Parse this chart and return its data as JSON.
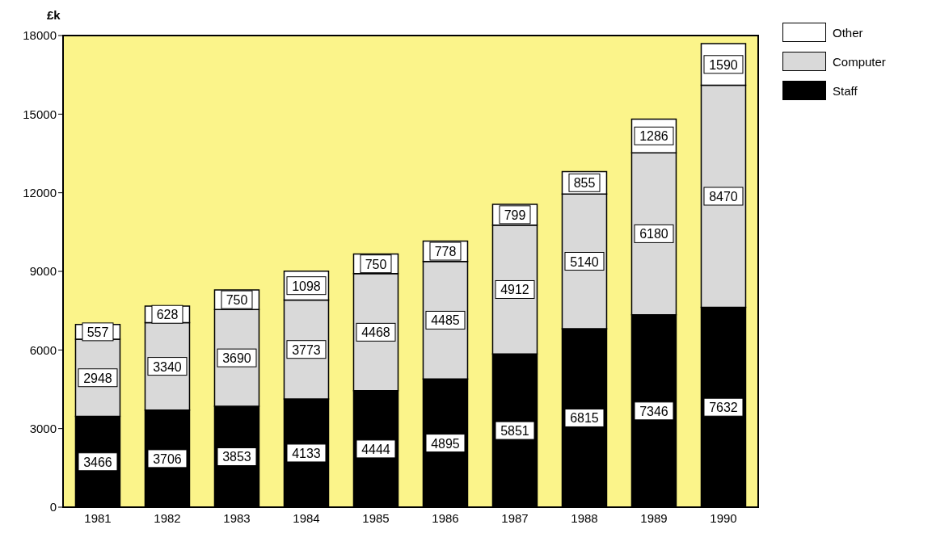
{
  "chart_data": {
    "type": "bar",
    "ylabel": "£k",
    "categories": [
      "1981",
      "1982",
      "1983",
      "1984",
      "1985",
      "1986",
      "1987",
      "1988",
      "1989",
      "1990"
    ],
    "series": [
      {
        "name": "Staff",
        "color": "#000000",
        "values": [
          3466,
          3706,
          3853,
          4133,
          4444,
          4895,
          5851,
          6815,
          7346,
          7632
        ]
      },
      {
        "name": "Computer",
        "color": "#d9d9d9",
        "values": [
          2948,
          3340,
          3690,
          3773,
          4468,
          4485,
          4912,
          5140,
          6180,
          8470
        ]
      },
      {
        "name": "Other",
        "color": "#ffffff",
        "values": [
          557,
          628,
          750,
          1098,
          750,
          778,
          799,
          855,
          1286,
          1590
        ]
      }
    ],
    "stacked": true,
    "ylim": [
      0,
      18000
    ],
    "yticks": [
      0,
      3000,
      6000,
      9000,
      12000,
      15000,
      18000
    ],
    "legend": "top right",
    "data_labels": true
  }
}
